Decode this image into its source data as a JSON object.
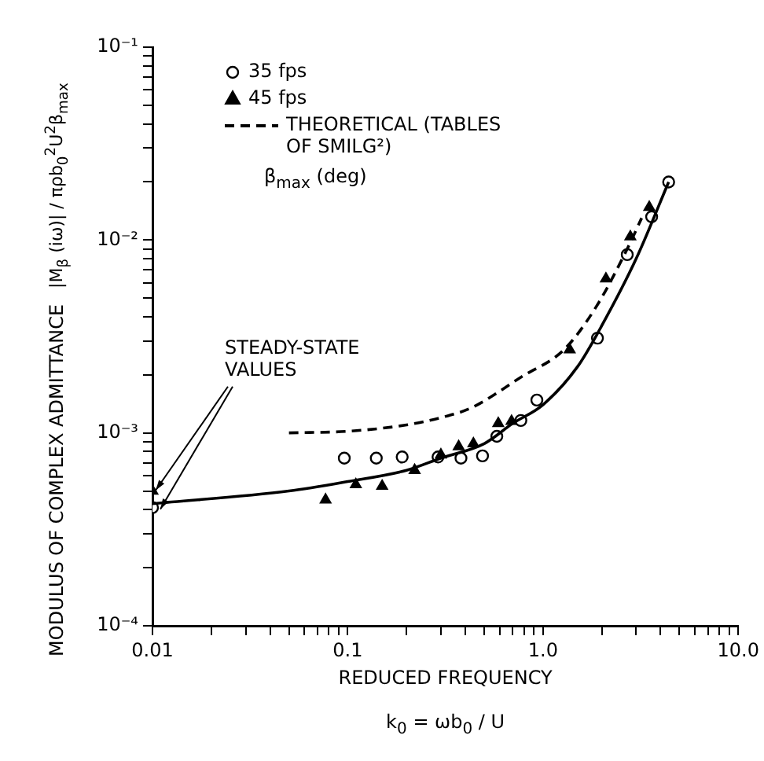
{
  "chart_data": {
    "type": "scatter",
    "xlabel": "REDUCED FREQUENCY",
    "ylabel": "MODULUS OF COMPLEX ADMITTANCE",
    "log": "xy",
    "grid": false,
    "legend": "top left",
    "xlim": [
      0.01,
      10
    ],
    "ylim": [
      0.0001,
      0.1
    ],
    "xticks": [
      0.01,
      {
        "value": 0.02,
        "label": null
      },
      {
        "value": 0.03,
        "label": null
      },
      {
        "value": 0.04,
        "label": null
      },
      {
        "value": 0.05,
        "label": null
      },
      {
        "value": 0.06,
        "label": null
      },
      {
        "value": 0.07,
        "label": null
      },
      {
        "value": 0.08,
        "label": null
      },
      {
        "value": 0.09,
        "label": null
      },
      0.1,
      {
        "value": 0.2,
        "label": null
      },
      {
        "value": 0.3,
        "label": null
      },
      {
        "value": 0.4,
        "label": null
      },
      {
        "value": 0.5,
        "label": null
      },
      {
        "value": 0.6,
        "label": null
      },
      {
        "value": 0.7,
        "label": null
      },
      {
        "value": 0.8,
        "label": null
      },
      {
        "value": 0.9,
        "label": null
      },
      {
        "value": 1,
        "label": "1.0"
      },
      {
        "value": 2,
        "label": null
      },
      {
        "value": 3,
        "label": null
      },
      {
        "value": 4,
        "label": null
      },
      {
        "value": 5,
        "label": null
      },
      {
        "value": 6,
        "label": null
      },
      {
        "value": 7,
        "label": null
      },
      {
        "value": 8,
        "label": null
      },
      {
        "value": 9,
        "label": null
      },
      {
        "value": 10,
        "label": "10.0"
      }
    ],
    "yticks": [
      {
        "value": 0.0001,
        "label": "10⁻⁴"
      },
      {
        "value": 0.0002,
        "label": null
      },
      {
        "value": 0.0003,
        "label": null
      },
      {
        "value": 0.0004,
        "label": null
      },
      {
        "value": 0.0005,
        "label": null
      },
      {
        "value": 0.0006,
        "label": null
      },
      {
        "value": 0.0007,
        "label": null
      },
      {
        "value": 0.0008,
        "label": null
      },
      {
        "value": 0.0009,
        "label": null
      },
      {
        "value": 0.001,
        "label": "10⁻³"
      },
      {
        "value": 0.002,
        "label": null
      },
      {
        "value": 0.003,
        "label": null
      },
      {
        "value": 0.004,
        "label": null
      },
      {
        "value": 0.005,
        "label": null
      },
      {
        "value": 0.006,
        "label": null
      },
      {
        "value": 0.007,
        "label": null
      },
      {
        "value": 0.008,
        "label": null
      },
      {
        "value": 0.009,
        "label": null
      },
      {
        "value": 0.01,
        "label": "10⁻²"
      },
      {
        "value": 0.02,
        "label": null
      },
      {
        "value": 0.03,
        "label": null
      },
      {
        "value": 0.04,
        "label": null
      },
      {
        "value": 0.05,
        "label": null
      },
      {
        "value": 0.06,
        "label": null
      },
      {
        "value": 0.07,
        "label": null
      },
      {
        "value": 0.08,
        "label": null
      },
      {
        "value": 0.09,
        "label": null
      },
      {
        "value": 0.1,
        "label": "10⁻¹"
      }
    ],
    "series": [
      {
        "name": "35 fps",
        "marker": "circle",
        "color": "#000000",
        "x": [
          0.01,
          0.096,
          0.14,
          0.19,
          0.29,
          0.38,
          0.49,
          0.58,
          0.77,
          0.93,
          1.9,
          2.7,
          3.6,
          4.4
        ],
        "values": [
          0.00041,
          0.00074,
          0.00074,
          0.00075,
          0.00075,
          0.00074,
          0.00076,
          0.00096,
          0.00116,
          0.00148,
          0.0031,
          0.0084,
          0.0132,
          0.02
        ]
      },
      {
        "name": "45 fps",
        "marker": "triangle",
        "color": "#000000",
        "x": [
          0.01,
          0.077,
          0.11,
          0.15,
          0.22,
          0.3,
          0.37,
          0.44,
          0.59,
          0.69,
          1.37,
          2.1,
          2.8,
          3.5
        ],
        "values": [
          0.0005,
          0.00045,
          0.00054,
          0.00053,
          0.00064,
          0.00077,
          0.00085,
          0.00088,
          0.00112,
          0.00115,
          0.0027,
          0.0063,
          0.0104,
          0.0148
        ]
      },
      {
        "type": "line",
        "marker": "none",
        "line_style": "solid",
        "color": "#000000",
        "x": [
          0.01,
          0.05,
          0.1,
          0.2,
          0.3,
          0.5,
          0.7,
          1.0,
          1.5,
          2,
          3,
          4.4
        ],
        "values": [
          0.00043,
          0.0005,
          0.00056,
          0.00064,
          0.00074,
          0.00088,
          0.00112,
          0.0014,
          0.0022,
          0.0036,
          0.008,
          0.02
        ]
      },
      {
        "name": "THEORETICAL (TABLES OF SMILG²)",
        "type": "line",
        "marker": "none",
        "line_style": "dashed",
        "color": "#000000",
        "x": [
          0.05,
          0.1,
          0.2,
          0.3,
          0.43,
          0.78,
          1.28,
          1.87,
          2.7,
          3.2
        ],
        "values": [
          0.001,
          0.00102,
          0.0011,
          0.0012,
          0.00135,
          0.00196,
          0.0027,
          0.0045,
          0.009,
          0.013
        ]
      }
    ],
    "annotations": [
      "β$_{max}$ (deg)",
      "k$_{0}$ = ωb$_{0}$ / U",
      "|M$_{β}$ (iω)| / πρb$_{0}$$^{2}$U$^{2}$β$_{max}$",
      {
        "text": "STEADY-STATE VALUES",
        "x": 0.01,
        "y": 0.00045
      }
    ]
  }
}
